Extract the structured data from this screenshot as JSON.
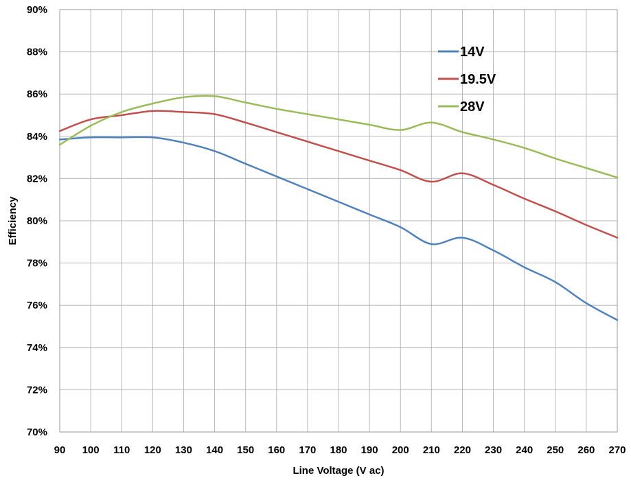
{
  "chart_data": {
    "type": "line",
    "title": "",
    "xlabel": "Line Voltage (V ac)",
    "ylabel": "Efficiency",
    "xlim": [
      90,
      270
    ],
    "ylim": [
      70,
      90
    ],
    "x_ticks": [
      "90",
      "100",
      "110",
      "120",
      "130",
      "140",
      "150",
      "160",
      "170",
      "180",
      "190",
      "200",
      "210",
      "220",
      "230",
      "240",
      "250",
      "260",
      "270"
    ],
    "y_ticks": [
      "70%",
      "72%",
      "74%",
      "76%",
      "78%",
      "80%",
      "82%",
      "84%",
      "86%",
      "88%",
      "90%"
    ],
    "grid": true,
    "legend_position": "top-right",
    "series": [
      {
        "name": "14V",
        "color": "#4F81BD",
        "x": [
          90,
          100,
          110,
          120,
          130,
          140,
          150,
          160,
          170,
          180,
          190,
          200,
          210,
          220,
          230,
          240,
          250,
          260,
          270
        ],
        "values": [
          83.85,
          83.95,
          83.95,
          83.95,
          83.7,
          83.3,
          82.7,
          82.1,
          81.5,
          80.9,
          80.3,
          79.7,
          78.9,
          79.2,
          78.6,
          77.8,
          77.1,
          76.1,
          75.3
        ]
      },
      {
        "name": "19.5V",
        "color": "#C0504D",
        "x": [
          90,
          100,
          110,
          120,
          130,
          140,
          150,
          160,
          170,
          180,
          190,
          200,
          210,
          220,
          230,
          240,
          250,
          260,
          270
        ],
        "values": [
          84.25,
          84.8,
          85.0,
          85.2,
          85.15,
          85.05,
          84.65,
          84.2,
          83.75,
          83.3,
          82.85,
          82.4,
          81.85,
          82.25,
          81.7,
          81.05,
          80.45,
          79.8,
          79.2
        ]
      },
      {
        "name": "28V",
        "color": "#9BBB59",
        "x": [
          90,
          100,
          110,
          120,
          130,
          140,
          150,
          160,
          170,
          180,
          190,
          200,
          210,
          220,
          230,
          240,
          250,
          260,
          270
        ],
        "values": [
          83.6,
          84.5,
          85.15,
          85.55,
          85.85,
          85.9,
          85.6,
          85.3,
          85.05,
          84.8,
          84.55,
          84.3,
          84.65,
          84.2,
          83.85,
          83.45,
          82.95,
          82.5,
          82.05
        ]
      }
    ]
  }
}
